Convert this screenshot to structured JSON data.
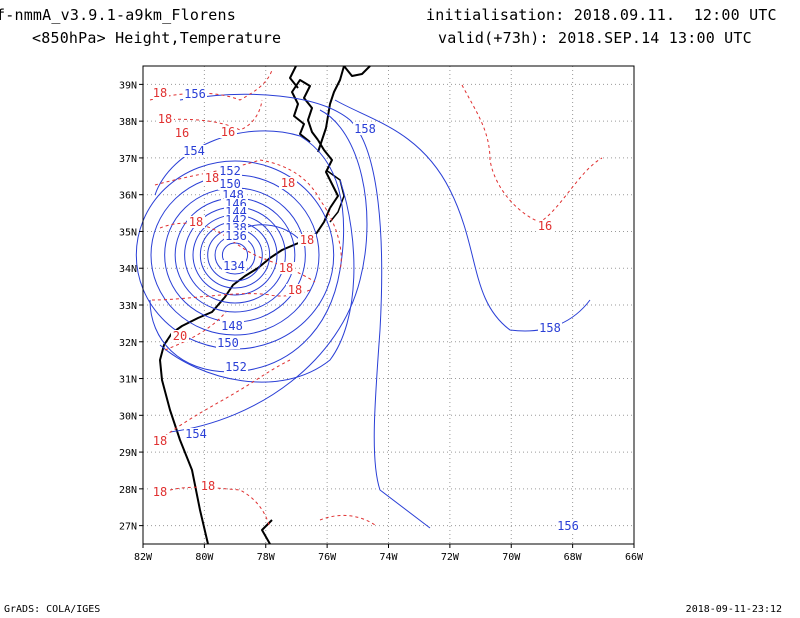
{
  "header": {
    "model": "f-nmmA_v3.9.1-a9km_Florens",
    "initialisation": "initialisation: 2018.09.11.  12:00 UTC",
    "field": "<850hPa> Height,Temperature",
    "valid": "valid(+73h): 2018.SEP.14 13:00 UTC"
  },
  "footer": {
    "credit": "GrADS: COLA/IGES",
    "timestamp": "2018-09-11-23:12"
  },
  "map": {
    "lon_min": -82,
    "lon_max": -66,
    "lat_min": 26.5,
    "lat_max": 39.5,
    "lon_ticks": [
      "82W",
      "80W",
      "78W",
      "76W",
      "74W",
      "72W",
      "70W",
      "68W",
      "66W"
    ],
    "lat_ticks": [
      "27N",
      "28N",
      "29N",
      "30N",
      "31N",
      "32N",
      "33N",
      "34N",
      "35N",
      "36N",
      "37N",
      "38N",
      "39N"
    ],
    "height_color": "#2a3fd6",
    "temperature_color": "#e03030",
    "coast_color": "#000000",
    "height_labels": [
      "156",
      "158",
      "154",
      "152",
      "150",
      "148",
      "146",
      "144",
      "142",
      "138",
      "136",
      "134",
      "148",
      "150",
      "152",
      "154",
      "158",
      "156"
    ],
    "temperature_labels": [
      "18",
      "18",
      "16",
      "16",
      "18",
      "18",
      "18",
      "18",
      "18",
      "18",
      "20",
      "18",
      "18",
      "18",
      "16"
    ]
  }
}
